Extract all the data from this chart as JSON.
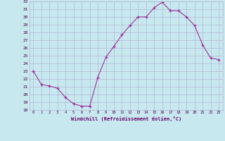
{
  "x": [
    0,
    1,
    2,
    3,
    4,
    5,
    6,
    7,
    8,
    9,
    10,
    11,
    12,
    13,
    14,
    15,
    16,
    17,
    18,
    19,
    20,
    21,
    22,
    23
  ],
  "y": [
    23.0,
    21.3,
    21.1,
    20.8,
    19.6,
    18.8,
    18.5,
    18.5,
    22.2,
    24.8,
    26.2,
    27.7,
    28.9,
    30.0,
    30.0,
    31.2,
    31.9,
    30.8,
    30.8,
    30.0,
    28.9,
    26.4,
    24.7,
    24.5
  ],
  "xlabel": "Windchill (Refroidissement éolien,°C)",
  "ylim": [
    18,
    32
  ],
  "xlim": [
    -0.5,
    23.5
  ],
  "yticks": [
    18,
    19,
    20,
    21,
    22,
    23,
    24,
    25,
    26,
    27,
    28,
    29,
    30,
    31,
    32
  ],
  "xticks": [
    0,
    1,
    2,
    3,
    4,
    5,
    6,
    7,
    8,
    9,
    10,
    11,
    12,
    13,
    14,
    15,
    16,
    17,
    18,
    19,
    20,
    21,
    22,
    23
  ],
  "line_color": "#993399",
  "marker_color": "#993399",
  "bg_color": "#c8e8f0",
  "grid_color": "#b0b8d0",
  "text_color": "#660066",
  "tick_label_color": "#440044"
}
